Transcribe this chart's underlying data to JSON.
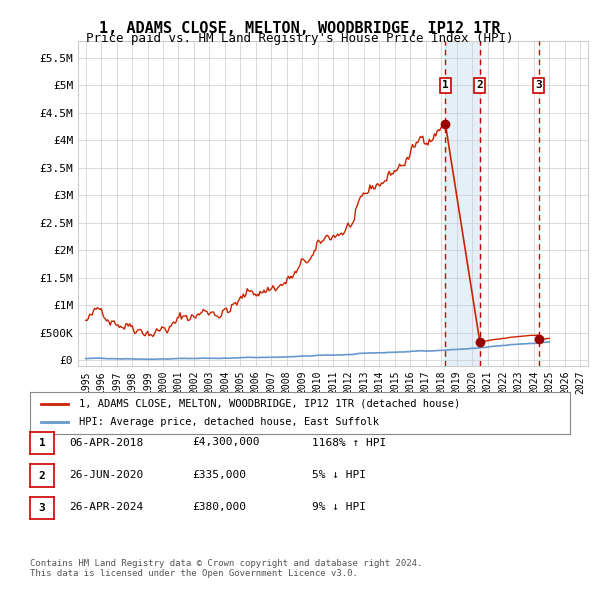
{
  "title": "1, ADAMS CLOSE, MELTON, WOODBRIDGE, IP12 1TR",
  "subtitle": "Price paid vs. HM Land Registry's House Price Index (HPI)",
  "ylabel": "",
  "xlim_left": 1994.5,
  "xlim_right": 2027.5,
  "ylim_bottom": -100000,
  "ylim_top": 5800000,
  "yticks": [
    0,
    500000,
    1000000,
    1500000,
    2000000,
    2500000,
    3000000,
    3500000,
    4000000,
    4500000,
    5000000,
    5500000
  ],
  "ytick_labels": [
    "£0",
    "£500K",
    "£1M",
    "£1.5M",
    "£2M",
    "£2.5M",
    "£3M",
    "£3.5M",
    "£4M",
    "£4.5M",
    "£5M",
    "£5.5M"
  ],
  "xticks": [
    1995,
    1996,
    1997,
    1998,
    1999,
    2000,
    2001,
    2002,
    2003,
    2004,
    2005,
    2006,
    2007,
    2008,
    2009,
    2010,
    2011,
    2012,
    2013,
    2014,
    2015,
    2016,
    2017,
    2018,
    2019,
    2020,
    2021,
    2022,
    2023,
    2024,
    2025,
    2026,
    2027
  ],
  "hpi_line_color": "#6699cc",
  "price_line_color": "#cc2200",
  "sale_marker_color": "#990000",
  "sale1_x": 2018.27,
  "sale1_y": 4300000,
  "sale1_label": "1",
  "sale2_x": 2020.5,
  "sale2_y": 335000,
  "sale2_label": "2",
  "sale3_x": 2024.32,
  "sale3_y": 380000,
  "sale3_label": "3",
  "vline1_x": 2018.27,
  "vline2_x": 2020.5,
  "vline3_x": 2024.32,
  "shade_start": 2018.27,
  "shade_end": 2020.5,
  "hatch_start": 2024.32,
  "hatch_end": 2027.5,
  "legend1_text": "1, ADAMS CLOSE, MELTON, WOODBRIDGE, IP12 1TR (detached house)",
  "legend2_text": "HPI: Average price, detached house, East Suffolk",
  "table_rows": [
    {
      "num": "1",
      "date": "06-APR-2018",
      "price": "£4,300,000",
      "hpi": "1168% ↑ HPI"
    },
    {
      "num": "2",
      "date": "26-JUN-2020",
      "price": "£335,000",
      "hpi": "5% ↓ HPI"
    },
    {
      "num": "3",
      "date": "26-APR-2024",
      "price": "£380,000",
      "hpi": "9% ↓ HPI"
    }
  ],
  "footnote": "Contains HM Land Registry data © Crown copyright and database right 2024.\nThis data is licensed under the Open Government Licence v3.0.",
  "background_color": "#ffffff",
  "grid_color": "#cccccc"
}
